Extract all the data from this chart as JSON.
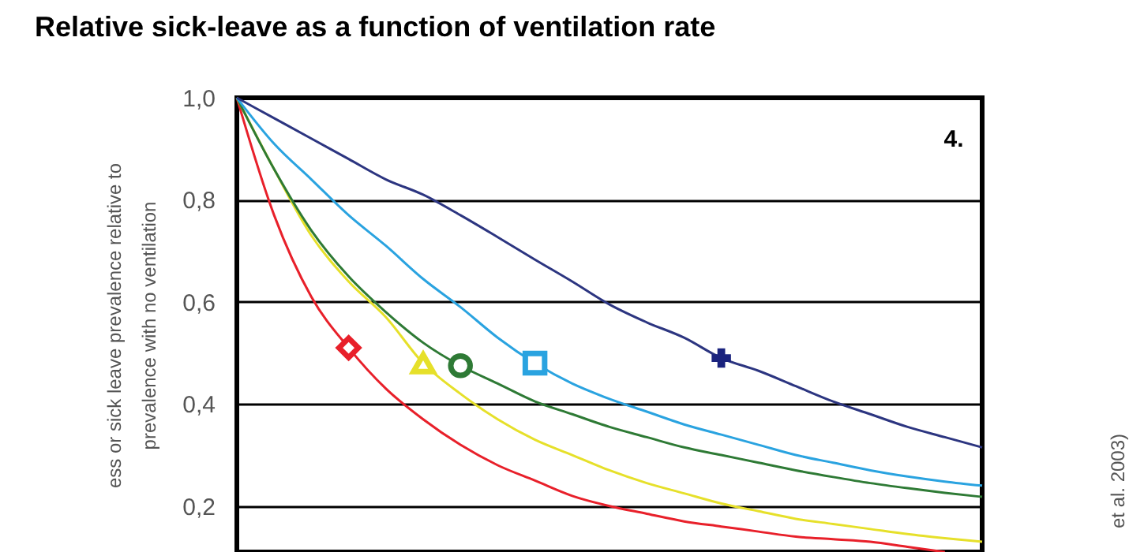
{
  "chart_data": {
    "type": "line",
    "title": "Relative sick-leave as a function of ventilation rate",
    "ylabel": "ess or sick leave prevalence relative to\nprevalence with no ventilation",
    "categories": [
      null,
      null,
      null,
      null,
      null,
      null,
      null,
      null,
      null,
      null,
      null,
      null,
      null,
      null,
      null,
      null,
      null,
      null,
      null,
      null,
      null
    ],
    "series": [
      {
        "color": "#e8202a",
        "values": [
          1.0,
          0.77,
          0.61,
          0.51,
          0.43,
          0.37,
          0.32,
          0.28,
          0.25,
          0.22,
          0.2,
          0.185,
          0.17,
          0.16,
          0.15,
          0.14,
          0.135,
          0.13,
          0.12,
          0.11,
          null
        ]
      },
      {
        "color": "#e6e02a",
        "values": [
          1.0,
          0.86,
          0.73,
          0.64,
          0.57,
          0.48,
          0.42,
          0.37,
          0.33,
          0.3,
          0.27,
          0.245,
          0.225,
          0.205,
          0.19,
          0.175,
          0.165,
          0.155,
          0.145,
          0.137,
          0.13
        ]
      },
      {
        "color": "#2e7a35",
        "values": [
          1.0,
          0.86,
          0.74,
          0.65,
          0.58,
          0.52,
          0.475,
          0.44,
          0.405,
          0.38,
          0.355,
          0.335,
          0.315,
          0.3,
          0.285,
          0.27,
          0.257,
          0.245,
          0.235,
          0.226,
          0.218
        ]
      },
      {
        "color": "#2aa3e0",
        "values": [
          1.0,
          0.91,
          0.84,
          0.77,
          0.71,
          0.645,
          0.59,
          0.53,
          0.48,
          0.44,
          0.41,
          0.385,
          0.36,
          0.34,
          0.32,
          0.3,
          0.285,
          0.27,
          0.258,
          0.248,
          0.24
        ]
      },
      {
        "color": "#2c3580",
        "values": [
          1.0,
          0.96,
          0.92,
          0.88,
          0.84,
          0.81,
          0.77,
          0.727,
          0.683,
          0.64,
          0.595,
          0.56,
          0.53,
          0.49,
          0.465,
          0.435,
          0.405,
          0.38,
          0.355,
          0.335,
          0.315
        ]
      },
      {
        "type": "scatter",
        "marker": "diamond",
        "color": "#e8202a",
        "values": [
          null,
          null,
          null,
          0.51,
          null,
          null,
          null,
          null,
          null,
          null,
          null,
          null,
          null,
          null,
          null,
          null,
          null,
          null,
          null,
          null,
          null
        ]
      },
      {
        "type": "scatter",
        "marker": "triangle",
        "color": "#e6e02a",
        "values": [
          null,
          null,
          null,
          null,
          null,
          0.48,
          null,
          null,
          null,
          null,
          null,
          null,
          null,
          null,
          null,
          null,
          null,
          null,
          null,
          null,
          null
        ]
      },
      {
        "type": "scatter",
        "marker": "circle",
        "color": "#2e7a35",
        "values": [
          null,
          null,
          null,
          null,
          null,
          null,
          0.475,
          null,
          null,
          null,
          null,
          null,
          null,
          null,
          null,
          null,
          null,
          null,
          null,
          null,
          null
        ]
      },
      {
        "type": "scatter",
        "marker": "square",
        "color": "#2aa3e0",
        "values": [
          null,
          null,
          null,
          null,
          null,
          null,
          null,
          null,
          0.48,
          null,
          null,
          null,
          null,
          null,
          null,
          null,
          null,
          null,
          null,
          null,
          null
        ]
      },
      {
        "type": "scatter",
        "marker": "cross",
        "color": "#1a237e",
        "values": [
          null,
          null,
          null,
          null,
          null,
          null,
          null,
          null,
          null,
          null,
          null,
          null,
          null,
          0.49,
          null,
          null,
          null,
          null,
          null,
          null,
          null
        ]
      }
    ],
    "ylim": [
      0.11,
      1.0
    ],
    "yticks": [
      {
        "value": 0.2,
        "label": "0,2"
      },
      {
        "value": 0.4,
        "label": "0,4"
      },
      {
        "value": 0.6,
        "label": "0,6"
      },
      {
        "value": 0.8,
        "label": "0,8"
      },
      {
        "value": 1.0,
        "label": "1,0"
      }
    ],
    "grid": "y",
    "tick_labels": "y",
    "annotations": [
      "4.",
      "et al. 2003)"
    ]
  }
}
